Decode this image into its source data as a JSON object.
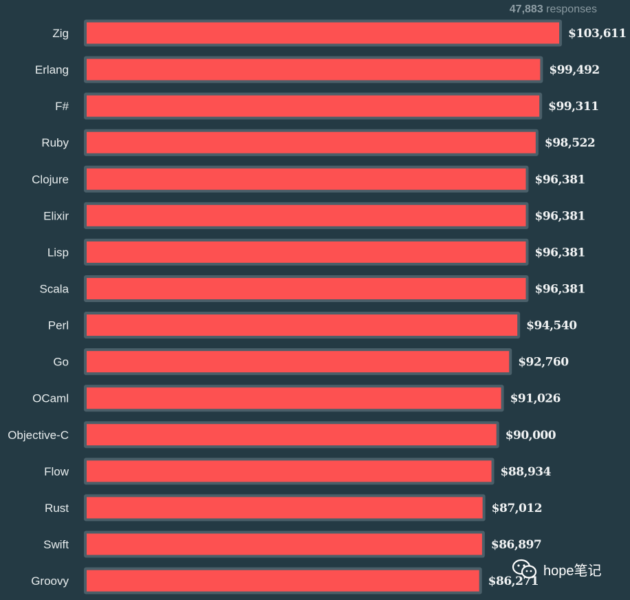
{
  "header": {
    "responses_count": "47,883",
    "responses_label": "responses"
  },
  "watermark": {
    "text": "hope笔记",
    "icon": "wechat-icon"
  },
  "colors": {
    "background": "#243a44",
    "bar": "#fd5151",
    "bar_outline": "#4a5f69"
  },
  "chart_data": {
    "type": "bar",
    "orientation": "horizontal",
    "categories": [
      "Zig",
      "Erlang",
      "F#",
      "Ruby",
      "Clojure",
      "Elixir",
      "Lisp",
      "Scala",
      "Perl",
      "Go",
      "OCaml",
      "Objective-C",
      "Flow",
      "Rust",
      "Swift",
      "Groovy"
    ],
    "values": [
      103611,
      99492,
      99311,
      98522,
      96381,
      96381,
      96381,
      96381,
      94540,
      92760,
      91026,
      90000,
      88934,
      87012,
      86897,
      86271
    ],
    "value_labels": [
      "$103,611",
      "$99,492",
      "$99,311",
      "$98,522",
      "$96,381",
      "$96,381",
      "$96,381",
      "$96,381",
      "$94,540",
      "$92,760",
      "$91,026",
      "$90,000",
      "$88,934",
      "$87,012",
      "$86,897",
      "$86,271"
    ],
    "title": "",
    "xlabel": "",
    "ylabel": "",
    "xlim": [
      0,
      103611
    ],
    "grid": false,
    "legend": "none"
  }
}
